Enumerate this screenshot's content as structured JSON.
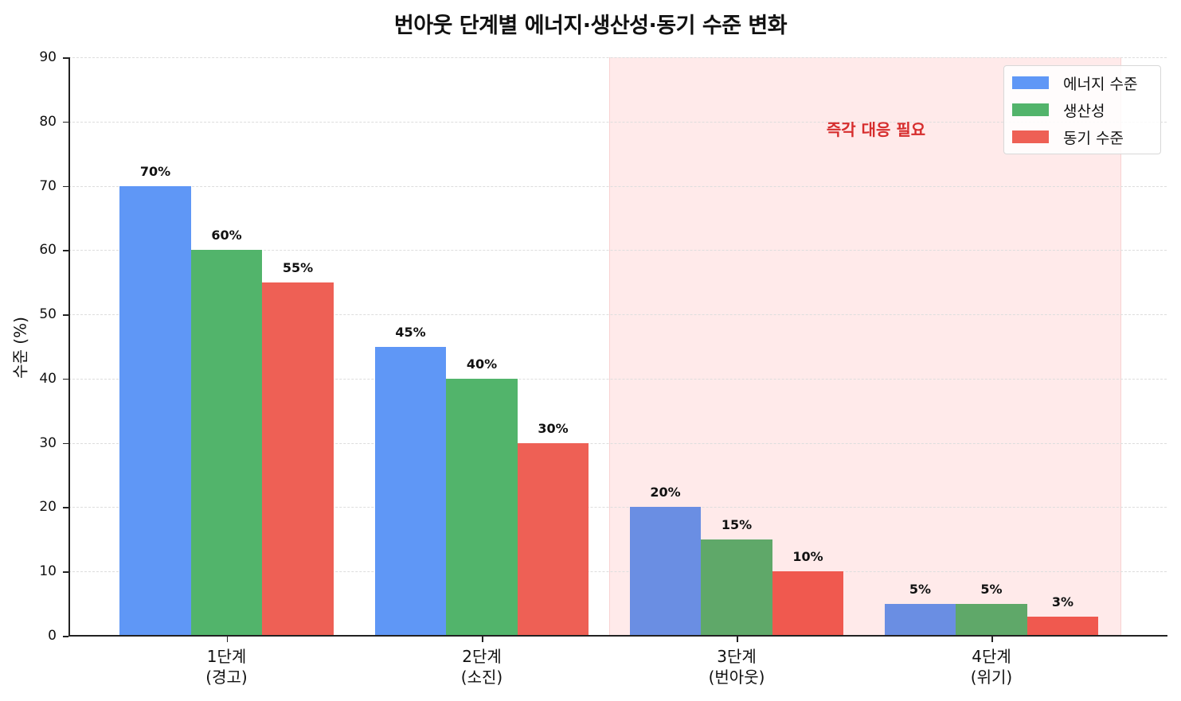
{
  "chart_data": {
    "type": "bar",
    "title": "번아웃 단계별 에너지·생산성·동기 수준 변화",
    "xlabel": "",
    "ylabel": "수준 (%)",
    "ylim": [
      0,
      90
    ],
    "yticks": [
      0,
      10,
      20,
      30,
      40,
      50,
      60,
      70,
      80,
      90
    ],
    "grid": true,
    "categories": [
      "1단계\n(경고)",
      "2단계\n(소진)",
      "3단계\n(번아웃)",
      "4단계\n(위기)"
    ],
    "category_lines": [
      [
        "1단계",
        "(경고)"
      ],
      [
        "2단계",
        "(소진)"
      ],
      [
        "3단계",
        "(번아웃)"
      ],
      [
        "4단계",
        "(위기)"
      ]
    ],
    "series": [
      {
        "name": "에너지 수준",
        "color": "#5f97f6",
        "values": [
          70,
          45,
          20,
          5
        ]
      },
      {
        "name": "생산성",
        "color": "#52b46b",
        "values": [
          60,
          40,
          15,
          5
        ]
      },
      {
        "name": "동기 수준",
        "color": "#ee6055",
        "values": [
          55,
          30,
          10,
          3
        ]
      }
    ],
    "value_labels": [
      [
        "70%",
        "45%",
        "20%",
        "5%"
      ],
      [
        "60%",
        "40%",
        "15%",
        "5%"
      ],
      [
        "55%",
        "30%",
        "10%",
        "3%"
      ]
    ],
    "highlight_region": {
      "from_category": "3단계",
      "to_category": "4단계",
      "color": "#ffeaea",
      "annotation": "즉각 대응 필요",
      "annotation_color": "#d62d2d"
    },
    "legend_position": "upper right"
  }
}
